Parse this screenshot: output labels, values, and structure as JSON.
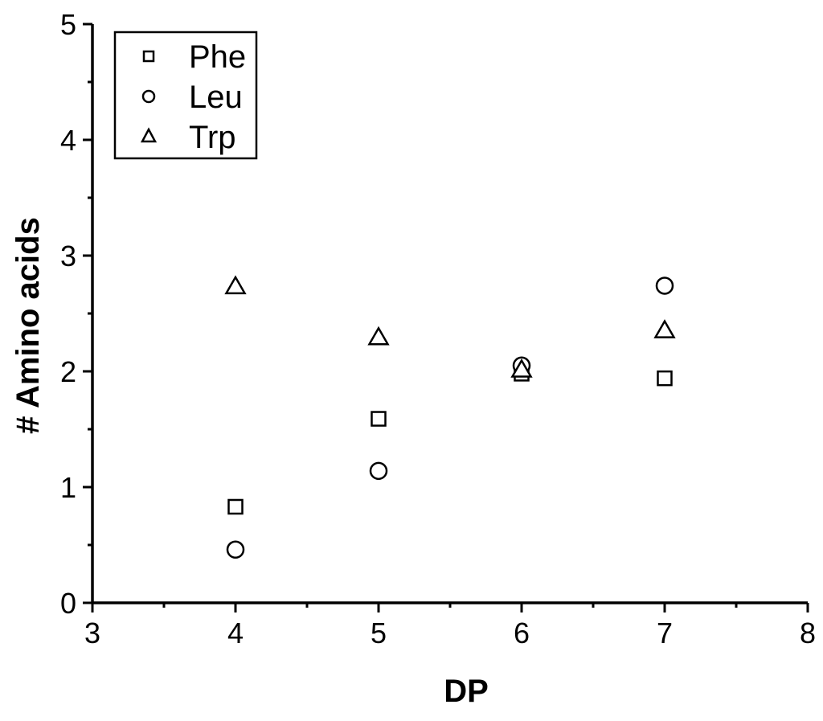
{
  "chart_data": {
    "type": "scatter",
    "title": "",
    "xlabel": "DP",
    "ylabel": "# Amino acids",
    "xlim": [
      3,
      8
    ],
    "ylim": [
      0,
      5
    ],
    "x_ticks": [
      3,
      4,
      5,
      6,
      7,
      8
    ],
    "y_ticks": [
      0,
      1,
      2,
      3,
      4,
      5
    ],
    "grid": false,
    "legend_position": "top-left",
    "series": [
      {
        "name": "Phe",
        "marker": "square",
        "x": [
          4,
          5,
          6,
          7
        ],
        "y": [
          0.83,
          1.59,
          1.98,
          1.94
        ]
      },
      {
        "name": "Leu",
        "marker": "circle",
        "x": [
          4,
          5,
          6,
          7
        ],
        "y": [
          0.46,
          1.14,
          2.05,
          2.74
        ]
      },
      {
        "name": "Trp",
        "marker": "triangle",
        "x": [
          4,
          5,
          6,
          7
        ],
        "y": [
          2.73,
          2.29,
          2.01,
          2.35
        ]
      }
    ],
    "colors": {
      "marker_stroke": "#000000",
      "marker_fill": "#ffffff",
      "axis": "#000000"
    }
  }
}
